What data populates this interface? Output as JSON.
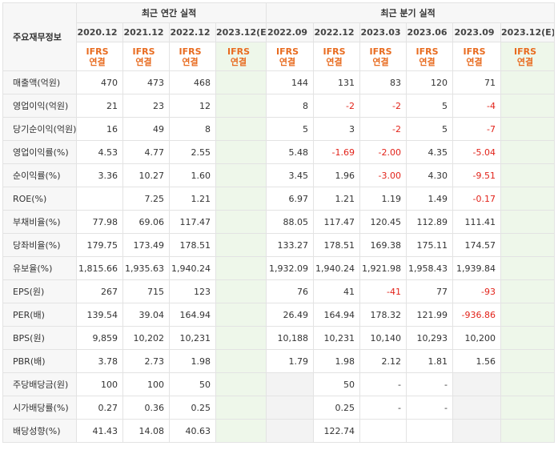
{
  "header": {
    "corner_label": "주요재무정보",
    "annual_group": "최근 연간 실적",
    "quarter_group": "최근 분기 실적",
    "annual_periods": [
      "2020.12",
      "2021.12",
      "2022.12",
      "2023.12(E)"
    ],
    "quarter_periods": [
      "2022.09",
      "2022.12",
      "2023.03",
      "2023.06",
      "2023.09",
      "2023.12(E)"
    ],
    "ifrs_line1": "IFRS",
    "ifrs_line2": "연결"
  },
  "rows": [
    {
      "label": "매출액(억원)",
      "annual": [
        "470",
        "473",
        "468",
        ""
      ],
      "quarter": [
        "144",
        "131",
        "83",
        "120",
        "71",
        ""
      ]
    },
    {
      "label": "영업이익(억원)",
      "annual": [
        "21",
        "23",
        "12",
        ""
      ],
      "quarter": [
        "8",
        "-2",
        "-2",
        "5",
        "-4",
        ""
      ]
    },
    {
      "label": "당기순이익(억원)",
      "annual": [
        "16",
        "49",
        "8",
        ""
      ],
      "quarter": [
        "5",
        "3",
        "-2",
        "5",
        "-7",
        ""
      ]
    },
    {
      "label": "영업이익률(%)",
      "annual": [
        "4.53",
        "4.77",
        "2.55",
        ""
      ],
      "quarter": [
        "5.48",
        "-1.69",
        "-2.00",
        "4.35",
        "-5.04",
        ""
      ]
    },
    {
      "label": "순이익률(%)",
      "annual": [
        "3.36",
        "10.27",
        "1.60",
        ""
      ],
      "quarter": [
        "3.45",
        "1.96",
        "-3.00",
        "4.30",
        "-9.51",
        ""
      ]
    },
    {
      "label": "ROE(%)",
      "annual": [
        "",
        "7.25",
        "1.21",
        ""
      ],
      "quarter": [
        "6.97",
        "1.21",
        "1.19",
        "1.49",
        "-0.17",
        ""
      ]
    },
    {
      "label": "부채비율(%)",
      "annual": [
        "77.98",
        "69.06",
        "117.47",
        ""
      ],
      "quarter": [
        "88.05",
        "117.47",
        "120.45",
        "112.89",
        "111.41",
        ""
      ]
    },
    {
      "label": "당좌비율(%)",
      "annual": [
        "179.75",
        "173.49",
        "178.51",
        ""
      ],
      "quarter": [
        "133.27",
        "178.51",
        "169.38",
        "175.11",
        "174.57",
        ""
      ]
    },
    {
      "label": "유보율(%)",
      "annual": [
        "1,815.66",
        "1,935.63",
        "1,940.24",
        ""
      ],
      "quarter": [
        "1,932.09",
        "1,940.24",
        "1,921.98",
        "1,958.43",
        "1,939.84",
        ""
      ]
    },
    {
      "label": "EPS(원)",
      "annual": [
        "267",
        "715",
        "123",
        ""
      ],
      "quarter": [
        "76",
        "41",
        "-41",
        "77",
        "-93",
        ""
      ]
    },
    {
      "label": "PER(배)",
      "annual": [
        "139.54",
        "39.04",
        "164.94",
        ""
      ],
      "quarter": [
        "26.49",
        "164.94",
        "178.32",
        "121.99",
        "-936.86",
        ""
      ]
    },
    {
      "label": "BPS(원)",
      "annual": [
        "9,859",
        "10,202",
        "10,231",
        ""
      ],
      "quarter": [
        "10,188",
        "10,231",
        "10,140",
        "10,293",
        "10,200",
        ""
      ]
    },
    {
      "label": "PBR(배)",
      "annual": [
        "3.78",
        "2.73",
        "1.98",
        ""
      ],
      "quarter": [
        "1.79",
        "1.98",
        "2.12",
        "1.81",
        "1.56",
        ""
      ]
    },
    {
      "label": "주당배당금(원)",
      "annual": [
        "100",
        "100",
        "50",
        ""
      ],
      "quarter": [
        "",
        "50",
        "-",
        "-",
        "",
        ""
      ]
    },
    {
      "label": "시가배당률(%)",
      "annual": [
        "0.27",
        "0.36",
        "0.25",
        ""
      ],
      "quarter": [
        "",
        "0.25",
        "-",
        "-",
        "",
        ""
      ]
    },
    {
      "label": "배당성향(%)",
      "annual": [
        "41.43",
        "14.08",
        "40.63",
        ""
      ],
      "quarter": [
        "",
        "122.74",
        "",
        "",
        "",
        ""
      ]
    }
  ],
  "colors": {
    "negative": "#e2231a",
    "ifrs": "#e86b1f",
    "estimate_bg": "#eef7ea"
  }
}
